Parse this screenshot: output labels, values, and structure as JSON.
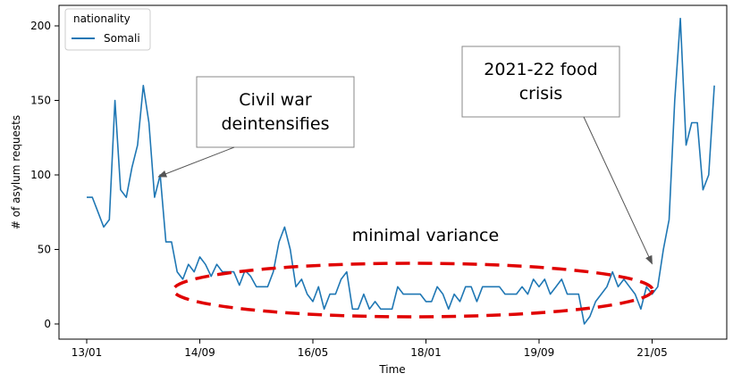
{
  "chart_data": {
    "type": "line",
    "xlabel": "Time",
    "ylabel": "# of asylum requests",
    "xlim": [
      0,
      120
    ],
    "ylim": [
      -5,
      212
    ],
    "x_ticks": [
      {
        "label": "13/01",
        "index": 0
      },
      {
        "label": "14/09",
        "index": 20
      },
      {
        "label": "16/05",
        "index": 40
      },
      {
        "label": "18/01",
        "index": 60
      },
      {
        "label": "19/09",
        "index": 80
      },
      {
        "label": "21/05",
        "index": 100
      }
    ],
    "y_ticks": [
      0,
      50,
      100,
      150,
      200
    ],
    "legend": {
      "title": "nationality",
      "position": "upper-left",
      "entries": [
        "Somali"
      ]
    },
    "series": [
      {
        "name": "Somali",
        "color": "#1f77b4",
        "values": [
          85,
          85,
          75,
          65,
          70,
          150,
          90,
          85,
          105,
          120,
          160,
          135,
          85,
          100,
          55,
          55,
          35,
          30,
          40,
          35,
          45,
          40,
          32,
          40,
          35,
          35,
          35,
          26,
          36,
          32,
          25,
          25,
          25,
          35,
          55,
          65,
          50,
          25,
          30,
          20,
          15,
          25,
          10,
          20,
          20,
          30,
          35,
          10,
          10,
          20,
          10,
          15,
          10,
          10,
          10,
          25,
          20,
          20,
          20,
          20,
          15,
          15,
          25,
          20,
          10,
          20,
          15,
          25,
          25,
          15,
          25,
          25,
          25,
          25,
          20,
          20,
          20,
          25,
          20,
          30,
          25,
          30,
          20,
          25,
          30,
          20,
          20,
          20,
          0,
          5,
          15,
          20,
          25,
          35,
          25,
          30,
          25,
          20,
          10,
          25,
          20,
          25,
          50,
          70,
          150,
          205,
          120,
          135,
          135,
          90,
          100,
          160
        ]
      }
    ],
    "annotations": [
      {
        "text_lines": [
          "Civil war",
          "deintensifies"
        ],
        "arrow_to_index": 13,
        "arrow_to_value": 100
      },
      {
        "text_lines": [
          "2021-22 food",
          "crisis"
        ],
        "arrow_to_index": 100,
        "arrow_to_value": 20
      }
    ],
    "text_labels": [
      "minimal variance"
    ]
  }
}
